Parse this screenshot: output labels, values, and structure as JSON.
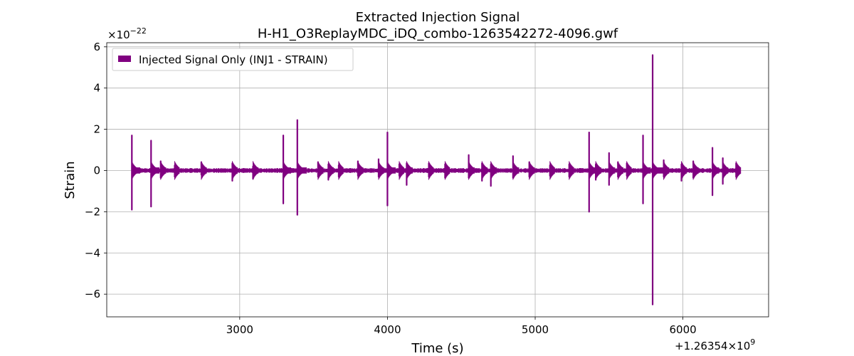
{
  "chart_data": {
    "type": "line",
    "title": "Extracted Injection Signal",
    "subtitle": "H-H1_O3ReplayMDC_iDQ_combo-1263542272-4096.gwf",
    "xlabel": "Time (s)",
    "ylabel": "Strain",
    "x_offset_label": "+1.26354×10",
    "x_offset_exp": "9",
    "y_scale_label": "×10",
    "y_scale_exp": "−22",
    "xlim": [
      2100,
      6580
    ],
    "ylim": [
      -7.1,
      6.2
    ],
    "x_ticks": [
      {
        "value": 3000,
        "label": "3000"
      },
      {
        "value": 4000,
        "label": "4000"
      },
      {
        "value": 5000,
        "label": "5000"
      },
      {
        "value": 6000,
        "label": "6000"
      }
    ],
    "y_ticks": [
      {
        "value": -6,
        "label": "−6"
      },
      {
        "value": -4,
        "label": "−4"
      },
      {
        "value": -2,
        "label": "−2"
      },
      {
        "value": 0,
        "label": "0"
      },
      {
        "value": 2,
        "label": "2"
      },
      {
        "value": 4,
        "label": "4"
      },
      {
        "value": 6,
        "label": "6"
      }
    ],
    "grid": true,
    "legend_position": "top-left",
    "color": "#800080",
    "series": [
      {
        "name": "Injected Signal Only (INJ1 - STRAIN)",
        "x_range": [
          2270,
          6380
        ],
        "baseline_amplitude": 0.12,
        "spikes": [
          {
            "x": 2270,
            "top": 1.7,
            "bottom": -1.9
          },
          {
            "x": 2400,
            "top": 1.45,
            "bottom": -1.75
          },
          {
            "x": 2465,
            "top": 0.45,
            "bottom": -0.35
          },
          {
            "x": 2560,
            "top": 0.25,
            "bottom": -0.3
          },
          {
            "x": 2740,
            "top": 0.4,
            "bottom": -0.2
          },
          {
            "x": 2950,
            "top": 0.35,
            "bottom": -0.5
          },
          {
            "x": 3090,
            "top": 0.2,
            "bottom": -0.4
          },
          {
            "x": 3295,
            "top": 1.7,
            "bottom": -1.6
          },
          {
            "x": 3390,
            "top": 2.45,
            "bottom": -2.15
          },
          {
            "x": 3530,
            "top": 0.4,
            "bottom": -0.3
          },
          {
            "x": 3600,
            "top": 0.3,
            "bottom": -0.45
          },
          {
            "x": 3670,
            "top": 0.25,
            "bottom": -0.3
          },
          {
            "x": 3800,
            "top": 0.45,
            "bottom": -0.25
          },
          {
            "x": 3940,
            "top": 0.55,
            "bottom": -0.3
          },
          {
            "x": 4000,
            "top": 1.85,
            "bottom": -1.7
          },
          {
            "x": 4080,
            "top": 0.3,
            "bottom": -0.25
          },
          {
            "x": 4130,
            "top": 0.35,
            "bottom": -0.7
          },
          {
            "x": 4280,
            "top": 0.35,
            "bottom": -0.3
          },
          {
            "x": 4390,
            "top": 0.3,
            "bottom": -0.35
          },
          {
            "x": 4550,
            "top": 0.75,
            "bottom": -0.35
          },
          {
            "x": 4640,
            "top": 0.35,
            "bottom": -0.5
          },
          {
            "x": 4700,
            "top": 0.3,
            "bottom": -0.75
          },
          {
            "x": 4850,
            "top": 0.7,
            "bottom": -0.35
          },
          {
            "x": 4960,
            "top": 0.4,
            "bottom": -0.3
          },
          {
            "x": 5100,
            "top": 0.25,
            "bottom": -0.25
          },
          {
            "x": 5230,
            "top": 0.3,
            "bottom": -0.3
          },
          {
            "x": 5365,
            "top": 1.85,
            "bottom": -2.0
          },
          {
            "x": 5410,
            "top": 0.3,
            "bottom": -0.45
          },
          {
            "x": 5500,
            "top": 0.85,
            "bottom": -0.7
          },
          {
            "x": 5560,
            "top": 0.4,
            "bottom": -0.3
          },
          {
            "x": 5620,
            "top": 0.35,
            "bottom": -0.25
          },
          {
            "x": 5730,
            "top": 1.7,
            "bottom": -1.6
          },
          {
            "x": 5795,
            "top": 5.6,
            "bottom": -6.5
          },
          {
            "x": 5870,
            "top": 0.5,
            "bottom": -0.3
          },
          {
            "x": 5990,
            "top": 0.3,
            "bottom": -0.5
          },
          {
            "x": 6070,
            "top": 0.45,
            "bottom": -0.35
          },
          {
            "x": 6200,
            "top": 1.1,
            "bottom": -1.2
          },
          {
            "x": 6270,
            "top": 0.6,
            "bottom": -0.65
          },
          {
            "x": 6360,
            "top": 0.35,
            "bottom": -0.3
          }
        ]
      }
    ]
  }
}
